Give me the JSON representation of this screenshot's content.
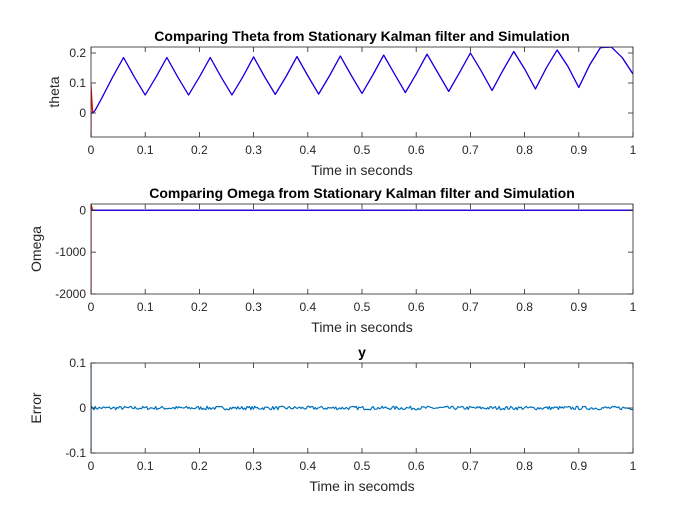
{
  "chart_data": [
    {
      "type": "line",
      "title": "Comparing Theta from Stationary Kalman filter and Simulation",
      "xlabel": "Time in seconds",
      "ylabel": "theta",
      "xlim": [
        0,
        1
      ],
      "ylim": [
        -0.08,
        0.22
      ],
      "xticks": [
        "0",
        "0.1",
        "0.2",
        "0.3",
        "0.4",
        "0.5",
        "0.6",
        "0.7",
        "0.8",
        "0.9",
        "1"
      ],
      "yticks": [
        {
          "value": 0,
          "label": "0"
        },
        {
          "value": 0.1,
          "label": "0.1"
        },
        {
          "value": 0.2,
          "label": "0.2"
        }
      ],
      "grid": false,
      "series": [
        {
          "color": "#ff0000",
          "x": [
            0,
            0,
            0.003,
            0.008,
            0.02,
            0.04,
            0.06,
            0.08,
            0.1,
            0.12,
            0.14,
            0.16,
            0.18,
            0.2,
            0.22,
            0.24,
            0.26,
            0.28,
            0.3,
            0.32,
            0.34,
            0.36,
            0.38,
            0.4,
            0.42,
            0.44,
            0.46,
            0.48,
            0.5,
            0.52,
            0.54,
            0.56,
            0.58,
            0.6,
            0.62,
            0.64,
            0.66,
            0.68,
            0.7,
            0.72,
            0.74,
            0.76,
            0.78,
            0.8,
            0.82,
            0.84,
            0.86,
            0.88,
            0.9,
            0.92,
            0.94,
            0.96,
            0.98,
            1.0
          ],
          "y": [
            -0.08,
            0.095,
            0.0,
            0.01,
            0.05,
            0.12,
            0.185,
            0.12,
            0.06,
            0.12,
            0.185,
            0.12,
            0.06,
            0.12,
            0.185,
            0.12,
            0.06,
            0.12,
            0.187,
            0.122,
            0.062,
            0.122,
            0.188,
            0.124,
            0.063,
            0.124,
            0.19,
            0.126,
            0.065,
            0.127,
            0.193,
            0.13,
            0.068,
            0.13,
            0.196,
            0.134,
            0.072,
            0.135,
            0.2,
            0.14,
            0.075,
            0.142,
            0.205,
            0.147,
            0.08,
            0.15,
            0.21,
            0.155,
            0.085,
            0.16,
            0.218,
            0.22,
            0.185,
            0.13
          ]
        },
        {
          "color": "#0000ff",
          "x": [
            0,
            0.003,
            0.008,
            0.02,
            0.04,
            0.06,
            0.08,
            0.1,
            0.12,
            0.14,
            0.16,
            0.18,
            0.2,
            0.22,
            0.24,
            0.26,
            0.28,
            0.3,
            0.32,
            0.34,
            0.36,
            0.38,
            0.4,
            0.42,
            0.44,
            0.46,
            0.48,
            0.5,
            0.52,
            0.54,
            0.56,
            0.58,
            0.6,
            0.62,
            0.64,
            0.66,
            0.68,
            0.7,
            0.72,
            0.74,
            0.76,
            0.78,
            0.8,
            0.82,
            0.84,
            0.86,
            0.88,
            0.9,
            0.92,
            0.94,
            0.96,
            0.98,
            1.0
          ],
          "y": [
            0.0,
            0.0,
            0.01,
            0.05,
            0.12,
            0.185,
            0.12,
            0.06,
            0.12,
            0.185,
            0.12,
            0.06,
            0.12,
            0.185,
            0.12,
            0.06,
            0.12,
            0.187,
            0.122,
            0.062,
            0.122,
            0.188,
            0.124,
            0.063,
            0.124,
            0.19,
            0.126,
            0.065,
            0.127,
            0.193,
            0.13,
            0.068,
            0.13,
            0.196,
            0.134,
            0.072,
            0.135,
            0.2,
            0.14,
            0.075,
            0.142,
            0.205,
            0.147,
            0.08,
            0.15,
            0.21,
            0.155,
            0.085,
            0.16,
            0.218,
            0.22,
            0.185,
            0.13
          ]
        }
      ]
    },
    {
      "type": "line",
      "title": "Comparing Omega from Stationary Kalman filter and Simulation",
      "xlabel": "Time in seconds",
      "ylabel": "Omega",
      "xlim": [
        0,
        1
      ],
      "ylim": [
        -2000,
        150
      ],
      "xticks": [
        "0",
        "0.1",
        "0.2",
        "0.3",
        "0.4",
        "0.5",
        "0.6",
        "0.7",
        "0.8",
        "0.9",
        "1"
      ],
      "yticks": [
        {
          "value": 0,
          "label": "0"
        },
        {
          "value": -1000,
          "label": "-1000"
        },
        {
          "value": -2000,
          "label": "-2000"
        }
      ],
      "grid": false,
      "series": [
        {
          "color": "#ff0000",
          "x": [
            0,
            0,
            0.003,
            0.01,
            0.1,
            0.2,
            0.3,
            0.4,
            0.5,
            0.6,
            0.7,
            0.8,
            0.9,
            1.0
          ],
          "y": [
            -2000,
            150,
            5,
            0,
            0,
            0,
            0,
            0,
            0,
            0,
            0,
            0,
            0,
            0
          ]
        },
        {
          "color": "#0000ff",
          "x": [
            0,
            0.1,
            0.2,
            0.3,
            0.4,
            0.5,
            0.6,
            0.7,
            0.8,
            0.9,
            1.0
          ],
          "y": [
            0,
            0,
            0,
            0,
            0,
            0,
            0,
            0,
            0,
            0,
            0
          ]
        }
      ]
    },
    {
      "type": "line",
      "title": "y",
      "xlabel": "Time in secomds",
      "ylabel": "Error",
      "xlim": [
        0,
        1
      ],
      "ylim": [
        -0.1,
        0.1
      ],
      "xticks": [
        "0",
        "0.1",
        "0.2",
        "0.3",
        "0.4",
        "0.5",
        "0.6",
        "0.7",
        "0.8",
        "0.9",
        "1"
      ],
      "yticks": [
        {
          "value": 0.1,
          "label": "0.1"
        },
        {
          "value": 0,
          "label": "0"
        },
        {
          "value": -0.1,
          "label": "-0.1"
        }
      ],
      "grid": false,
      "series": [
        {
          "color": "#0072bd",
          "noise_amplitude": 0.004,
          "x": [
            0,
            0,
            0,
            0.003,
            1.0
          ],
          "y": [
            0.095,
            -0.095,
            0.005,
            0,
            0
          ]
        }
      ]
    }
  ]
}
